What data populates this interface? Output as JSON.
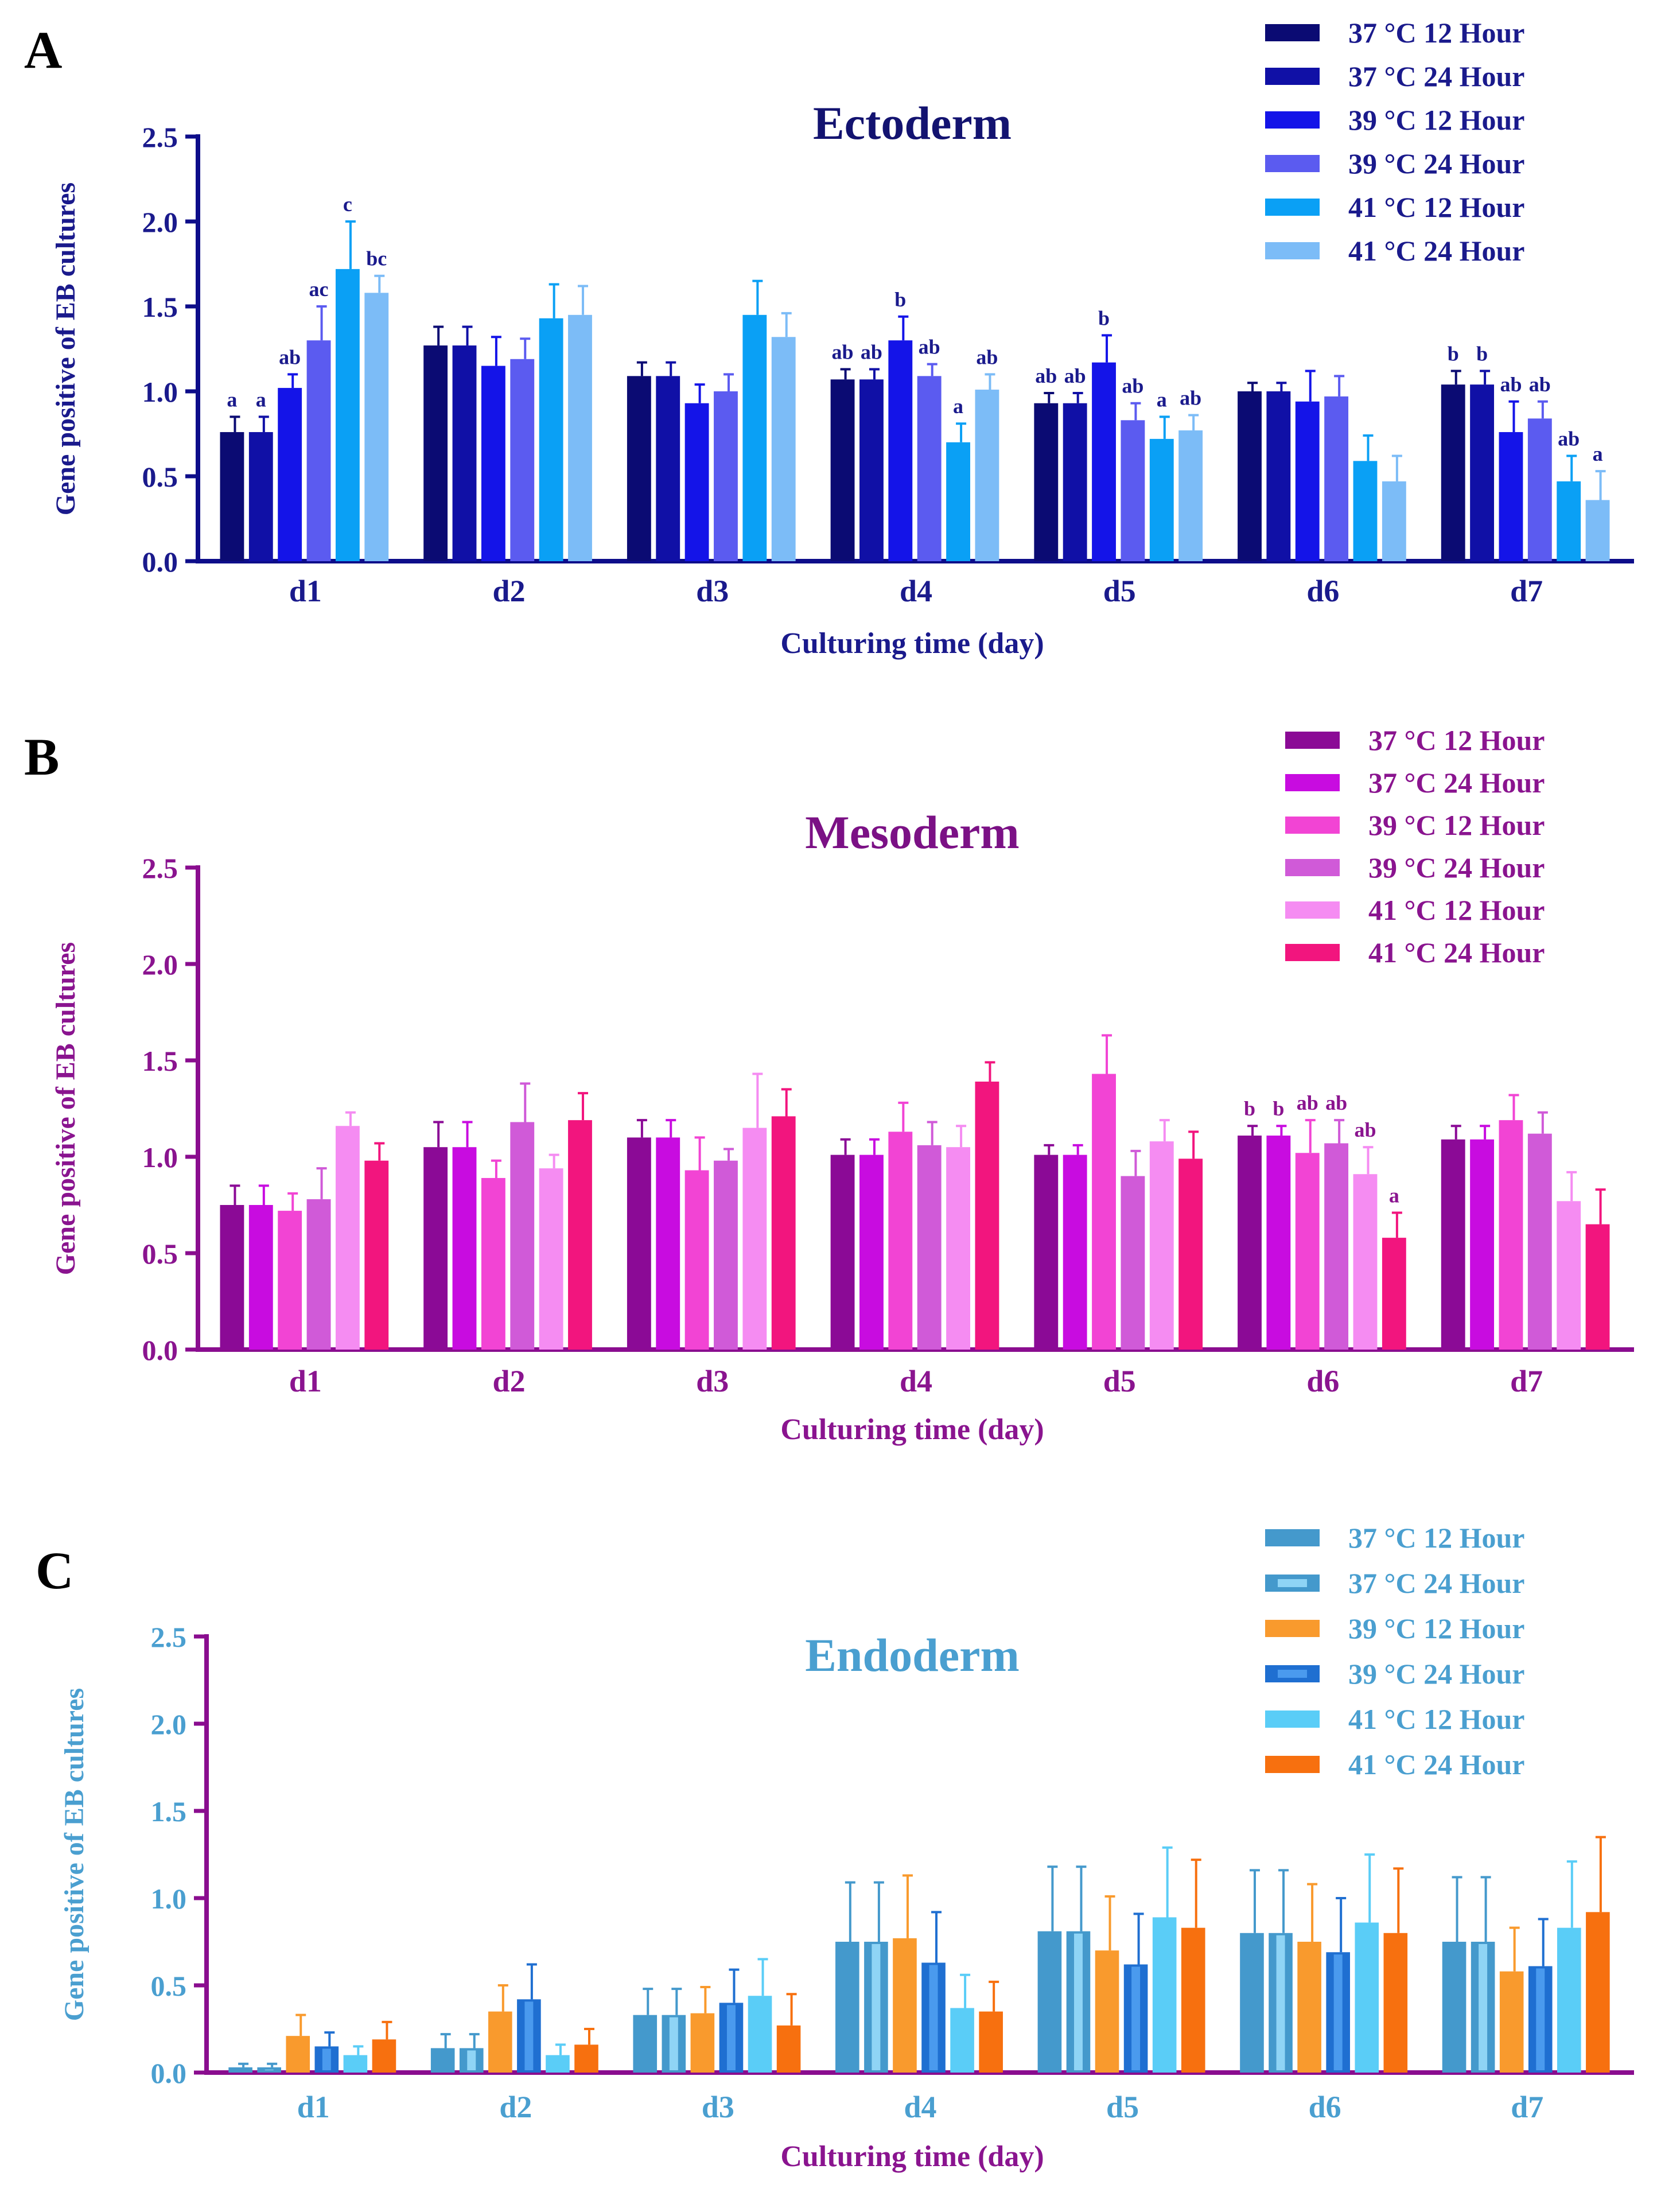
{
  "chart_data": [
    {
      "panel_label": "A",
      "type": "bar",
      "title": "Ectoderm",
      "xlabel": "Culturing time (day)",
      "ylabel": "Gene positive of EB cultures",
      "ylim": [
        0,
        2.5
      ],
      "yticks": [
        "0.0",
        "0.5",
        "1.0",
        "1.5",
        "2.0",
        "2.5"
      ],
      "categories": [
        "d1",
        "d2",
        "d3",
        "d4",
        "d5",
        "d6",
        "d7"
      ],
      "colors": {
        "axis": "#0D0D8A",
        "title": "#131370",
        "text": "#1A1A8C"
      },
      "series": [
        {
          "name": "37 °C 12 Hour",
          "color": "#0B0B73",
          "values": [
            0.76,
            1.27,
            1.09,
            1.07,
            0.93,
            1.0,
            1.04
          ],
          "errors": [
            0.09,
            0.11,
            0.08,
            0.06,
            0.06,
            0.05,
            0.08
          ],
          "letters": [
            "a",
            "",
            "",
            "ab",
            "ab",
            "",
            "b"
          ]
        },
        {
          "name": "37 °C 24 Hour",
          "color": "#1010A6",
          "values": [
            0.76,
            1.27,
            1.09,
            1.07,
            0.93,
            1.0,
            1.04
          ],
          "errors": [
            0.09,
            0.11,
            0.08,
            0.06,
            0.06,
            0.05,
            0.08
          ],
          "letters": [
            "a",
            "",
            "",
            "ab",
            "ab",
            "",
            "b"
          ]
        },
        {
          "name": "39 °C 12 Hour",
          "color": "#1414E8",
          "values": [
            1.02,
            1.15,
            0.93,
            1.3,
            1.17,
            0.94,
            0.76
          ],
          "errors": [
            0.08,
            0.17,
            0.11,
            0.14,
            0.16,
            0.18,
            0.18
          ],
          "letters": [
            "ab",
            "",
            "",
            "b",
            "b",
            "",
            "ab"
          ]
        },
        {
          "name": "39 °C 24 Hour",
          "color": "#5B5BF0",
          "values": [
            1.3,
            1.19,
            1.0,
            1.09,
            0.83,
            0.97,
            0.84
          ],
          "errors": [
            0.2,
            0.12,
            0.1,
            0.07,
            0.1,
            0.12,
            0.1
          ],
          "letters": [
            "ac",
            "",
            "",
            "ab",
            "ab",
            "",
            "ab"
          ]
        },
        {
          "name": "41 °C 12 Hour",
          "color": "#0AA0F5",
          "values": [
            1.72,
            1.43,
            1.45,
            0.7,
            0.72,
            0.59,
            0.47
          ],
          "errors": [
            0.28,
            0.2,
            0.2,
            0.11,
            0.13,
            0.15,
            0.15
          ],
          "letters": [
            "c",
            "",
            "",
            "a",
            "a",
            "",
            "ab"
          ]
        },
        {
          "name": "41 °C 24 Hour",
          "color": "#7CBCF7",
          "values": [
            1.58,
            1.45,
            1.32,
            1.01,
            0.77,
            0.47,
            0.36
          ],
          "errors": [
            0.1,
            0.17,
            0.14,
            0.09,
            0.09,
            0.15,
            0.17
          ],
          "letters": [
            "bc",
            "",
            "",
            "ab",
            "ab",
            "",
            "a"
          ]
        }
      ]
    },
    {
      "panel_label": "B",
      "type": "bar",
      "title": "Mesoderm",
      "xlabel": "Culturing time (day)",
      "ylabel": "Gene positive of EB cultures",
      "ylim": [
        0,
        2.5
      ],
      "yticks": [
        "0.0",
        "0.5",
        "1.0",
        "1.5",
        "2.0",
        "2.5"
      ],
      "categories": [
        "d1",
        "d2",
        "d3",
        "d4",
        "d5",
        "d6",
        "d7"
      ],
      "colors": {
        "axis": "#8A0D8F",
        "title": "#7B1185",
        "text": "#8A148F"
      },
      "series": [
        {
          "name": "37 °C 12 Hour",
          "color": "#8B0A96",
          "values": [
            0.75,
            1.05,
            1.1,
            1.01,
            1.01,
            1.11,
            1.09
          ],
          "errors": [
            0.1,
            0.13,
            0.09,
            0.08,
            0.05,
            0.05,
            0.07
          ],
          "letters": [
            "",
            "",
            "",
            "",
            "",
            "b",
            ""
          ]
        },
        {
          "name": "37 °C 24 Hour",
          "color": "#C80CE0",
          "values": [
            0.75,
            1.05,
            1.1,
            1.01,
            1.01,
            1.11,
            1.09
          ],
          "errors": [
            0.1,
            0.13,
            0.09,
            0.08,
            0.05,
            0.05,
            0.07
          ],
          "letters": [
            "",
            "",
            "",
            "",
            "",
            "b",
            ""
          ]
        },
        {
          "name": "39 °C 12 Hour",
          "color": "#F244D4",
          "values": [
            0.72,
            0.89,
            0.93,
            1.13,
            1.43,
            1.02,
            1.19
          ],
          "errors": [
            0.09,
            0.09,
            0.17,
            0.15,
            0.2,
            0.17,
            0.13
          ],
          "letters": [
            "",
            "",
            "",
            "",
            "",
            "ab",
            ""
          ]
        },
        {
          "name": "39 °C 24 Hour",
          "color": "#D05AD8",
          "values": [
            0.78,
            1.18,
            0.98,
            1.06,
            0.9,
            1.07,
            1.12
          ],
          "errors": [
            0.16,
            0.2,
            0.06,
            0.12,
            0.13,
            0.12,
            0.11
          ],
          "letters": [
            "",
            "",
            "",
            "",
            "",
            "ab",
            ""
          ]
        },
        {
          "name": "41 °C 12 Hour",
          "color": "#F58CF2",
          "values": [
            1.16,
            0.94,
            1.15,
            1.05,
            1.08,
            0.91,
            0.77
          ],
          "errors": [
            0.07,
            0.07,
            0.28,
            0.11,
            0.11,
            0.14,
            0.15
          ],
          "letters": [
            "",
            "",
            "",
            "",
            "",
            "ab",
            ""
          ]
        },
        {
          "name": "41 °C 24 Hour",
          "color": "#F2157E",
          "values": [
            0.98,
            1.19,
            1.21,
            1.39,
            0.99,
            0.58,
            0.65
          ],
          "errors": [
            0.09,
            0.14,
            0.14,
            0.1,
            0.14,
            0.13,
            0.18
          ],
          "letters": [
            "",
            "",
            "",
            "",
            "",
            "a",
            ""
          ]
        }
      ]
    },
    {
      "panel_label": "C",
      "type": "bar",
      "title": "Endoderm",
      "xlabel": "Culturing time (day)",
      "ylabel": "Gene positive of EB cultures",
      "ylim": [
        0,
        2.5
      ],
      "yticks": [
        "0.0",
        "0.5",
        "1.0",
        "1.5",
        "2.0",
        "2.5"
      ],
      "categories": [
        "d1",
        "d2",
        "d3",
        "d4",
        "d5",
        "d6",
        "d7"
      ],
      "colors": {
        "axis": "#8A0D8F",
        "title": "#4A9FD0",
        "text": "#4A9FD0",
        "xlabel": "#8A148F"
      },
      "series": [
        {
          "name": "37 °C 12 Hour",
          "color": "#4499CC",
          "values": [
            0.03,
            0.14,
            0.33,
            0.75,
            0.81,
            0.8,
            0.75
          ],
          "errors": [
            0.02,
            0.08,
            0.15,
            0.34,
            0.37,
            0.36,
            0.37
          ]
        },
        {
          "name": "37 °C 24 Hour",
          "color": "#4499CC",
          "inner": "#8FD4F5",
          "values": [
            0.03,
            0.14,
            0.33,
            0.75,
            0.81,
            0.8,
            0.75
          ],
          "errors": [
            0.02,
            0.08,
            0.15,
            0.34,
            0.37,
            0.36,
            0.37
          ]
        },
        {
          "name": "39 °C 12 Hour",
          "color": "#F99A2D",
          "values": [
            0.21,
            0.35,
            0.34,
            0.77,
            0.7,
            0.75,
            0.58
          ],
          "errors": [
            0.12,
            0.15,
            0.15,
            0.36,
            0.31,
            0.33,
            0.25
          ]
        },
        {
          "name": "39 °C 24 Hour",
          "color": "#1F6FD1",
          "inner": "#4A9AEE",
          "values": [
            0.15,
            0.42,
            0.4,
            0.63,
            0.62,
            0.69,
            0.61
          ],
          "errors": [
            0.08,
            0.2,
            0.19,
            0.29,
            0.29,
            0.31,
            0.27
          ]
        },
        {
          "name": "41 °C 12 Hour",
          "color": "#5ACDF7",
          "values": [
            0.1,
            0.1,
            0.44,
            0.37,
            0.89,
            0.86,
            0.83
          ],
          "errors": [
            0.05,
            0.06,
            0.21,
            0.19,
            0.4,
            0.39,
            0.38
          ]
        },
        {
          "name": "41 °C 24 Hour",
          "color": "#F7700F",
          "values": [
            0.19,
            0.16,
            0.27,
            0.35,
            0.83,
            0.8,
            0.92
          ],
          "errors": [
            0.1,
            0.09,
            0.18,
            0.17,
            0.39,
            0.37,
            0.43
          ]
        }
      ]
    }
  ]
}
